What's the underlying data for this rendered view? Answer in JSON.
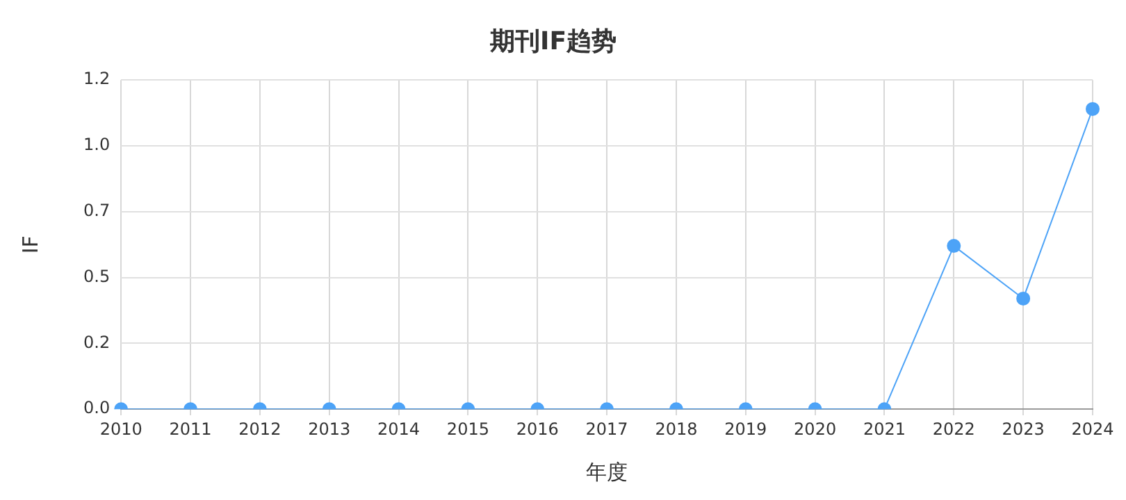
{
  "chart_data": {
    "type": "line",
    "title": "期刊IF趋势",
    "xlabel": "年度",
    "ylabel": "IF",
    "categories": [
      "2010",
      "2011",
      "2012",
      "2013",
      "2014",
      "2015",
      "2016",
      "2017",
      "2018",
      "2019",
      "2020",
      "2021",
      "2022",
      "2023",
      "2024"
    ],
    "series": [
      {
        "color": "#4da3f7",
        "values": [
          0,
          0,
          0,
          0,
          0,
          0,
          0,
          0,
          0,
          0,
          0,
          0,
          0.62,
          0.42,
          1.14
        ]
      }
    ],
    "ylim": [
      0,
      1.25
    ],
    "yticks": [
      {
        "value": 0,
        "label": "0.0"
      },
      {
        "value": 0.25,
        "label": "0.2"
      },
      {
        "value": 0.5,
        "label": "0.5"
      },
      {
        "value": 0.75,
        "label": "0.7"
      },
      {
        "value": 1,
        "label": "1.0"
      },
      {
        "value": 1.25,
        "label": "1.2"
      }
    ],
    "grid": true,
    "legend": false,
    "marker": "circle",
    "line_style": "solid"
  }
}
